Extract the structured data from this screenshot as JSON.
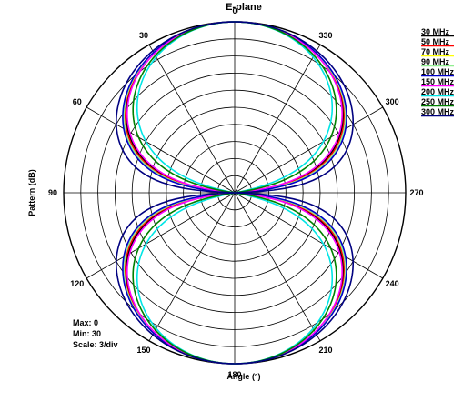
{
  "chart_data": {
    "type": "polar-line",
    "title": "E-plane",
    "xlabel": "Angle  (°)",
    "ylabel": "Pattern  (dB)",
    "angle_ticks": [
      0,
      30,
      60,
      90,
      120,
      150,
      180,
      210,
      240,
      270,
      300,
      330
    ],
    "angle_unit": "degrees",
    "angle_direction": "counter-clockwise, 0 at top",
    "r_range_db": [
      -30,
      0
    ],
    "r_scale_db_per_div": 3,
    "grid": true,
    "legend_position": "top-right",
    "stats": {
      "max": "Max: 0",
      "min": "Min: 30",
      "scale": "Scale: 3/div"
    },
    "series": [
      {
        "name": "30 MHz",
        "color": "#000000",
        "pattern": {
          "n": 1.4,
          "floor": -30
        }
      },
      {
        "name": "50 MHz",
        "color": "#ff0000",
        "pattern": {
          "n": 1.35,
          "floor": -30
        }
      },
      {
        "name": "70 MHz",
        "color": "#ffff00",
        "pattern": {
          "n": 1.3,
          "floor": -30
        }
      },
      {
        "name": "90 MHz",
        "color": "#90ee90",
        "pattern": {
          "n": 1.3,
          "floor": -30
        }
      },
      {
        "name": "100 MHz",
        "color": "#0000cc",
        "pattern": {
          "n": 1.25,
          "floor": -30
        }
      },
      {
        "name": "150 MHz",
        "color": "#ff00ff",
        "pattern": {
          "n": 1.45,
          "floor": -30
        }
      },
      {
        "name": "200 MHz",
        "color": "#00e5e5",
        "pattern": {
          "n": 2.0,
          "floor": -30
        }
      },
      {
        "name": "250 MHz",
        "color": "#008000",
        "pattern": {
          "n": 1.75,
          "floor": -30
        }
      },
      {
        "name": "300 MHz",
        "color": "#000080",
        "pattern": {
          "n": 1.0,
          "floor": -30
        }
      }
    ]
  }
}
